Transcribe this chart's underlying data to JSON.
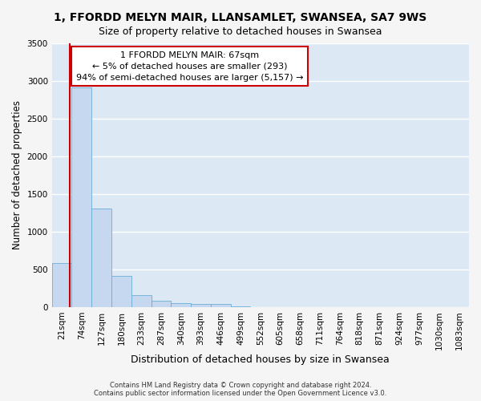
{
  "title": "1, FFORDD MELYN MAIR, LLANSAMLET, SWANSEA, SA7 9WS",
  "subtitle": "Size of property relative to detached houses in Swansea",
  "xlabel": "Distribution of detached houses by size in Swansea",
  "ylabel": "Number of detached properties",
  "bar_labels": [
    "21sqm",
    "74sqm",
    "127sqm",
    "180sqm",
    "233sqm",
    "287sqm",
    "340sqm",
    "393sqm",
    "446sqm",
    "499sqm",
    "552sqm",
    "605sqm",
    "658sqm",
    "711sqm",
    "764sqm",
    "818sqm",
    "871sqm",
    "924sqm",
    "977sqm",
    "1030sqm",
    "1083sqm"
  ],
  "bar_values": [
    580,
    2920,
    1310,
    410,
    155,
    85,
    55,
    45,
    40,
    5,
    0,
    0,
    0,
    0,
    0,
    0,
    0,
    0,
    0,
    0,
    0
  ],
  "bar_color": "#c5d8ef",
  "bar_edge_color": "#6baed6",
  "annotation_text": "1 FFORDD MELYN MAIR: 67sqm\n← 5% of detached houses are smaller (293)\n94% of semi-detached houses are larger (5,157) →",
  "annotation_box_color": "#ffffff",
  "annotation_box_edge_color": "#cc0000",
  "red_line_x": 0.4,
  "ylim": [
    0,
    3500
  ],
  "yticks": [
    0,
    500,
    1000,
    1500,
    2000,
    2500,
    3000,
    3500
  ],
  "background_color": "#dce9f5",
  "grid_color": "#ffffff",
  "fig_background": "#f5f5f5",
  "footer_line1": "Contains HM Land Registry data © Crown copyright and database right 2024.",
  "footer_line2": "Contains public sector information licensed under the Open Government Licence v3.0.",
  "title_fontsize": 10,
  "subtitle_fontsize": 9,
  "xlabel_fontsize": 9,
  "ylabel_fontsize": 8.5,
  "annotation_fontsize": 8,
  "tick_fontsize": 7.5,
  "footer_fontsize": 6
}
